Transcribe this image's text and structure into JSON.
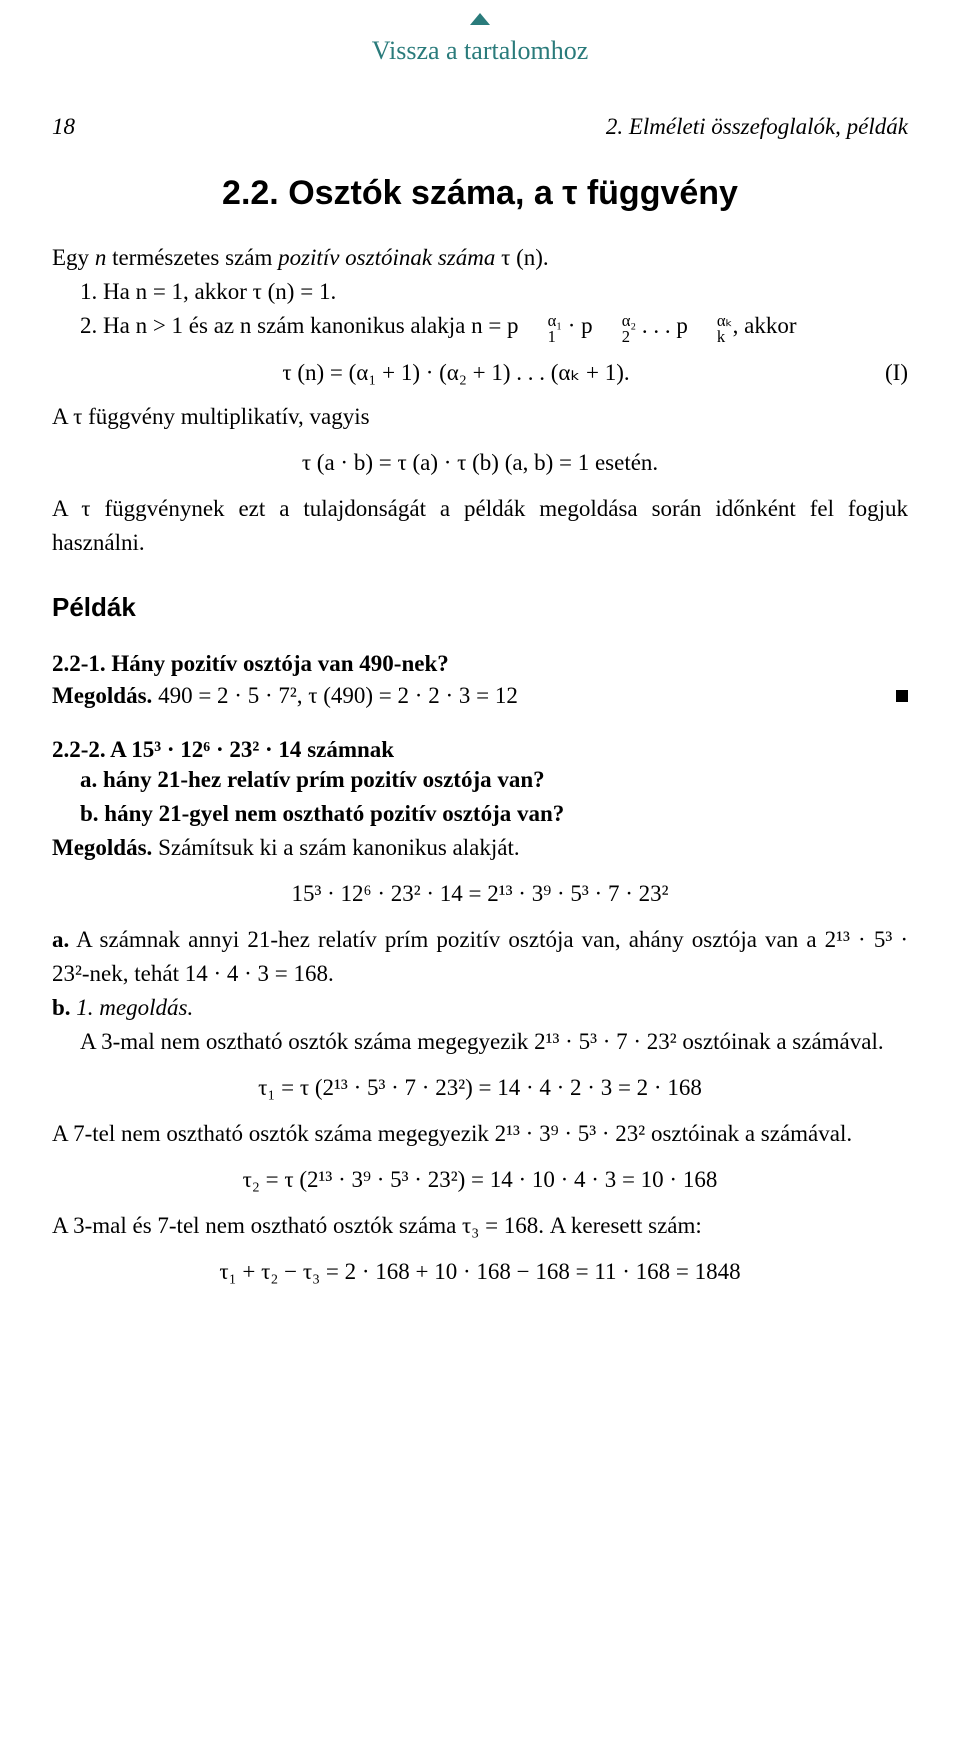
{
  "nav": {
    "back_label": "Vissza a tartalomhoz"
  },
  "header": {
    "page_number": "18",
    "running_title": "2. Elméleti összefoglalók, példák"
  },
  "section": {
    "number": "2.2.",
    "title": "Osztók száma, a τ függvény"
  },
  "intro": {
    "line1_pre": "Egy ",
    "line1_n": "n",
    "line1_mid": " természetes szám ",
    "line1_ital": "pozitív osztóinak száma",
    "line1_post": " τ (n).",
    "item1": "1. Ha n = 1, akkor τ (n) = 1.",
    "item2_pre": "2. Ha n > 1 és az n szám kanonikus alakja n = p",
    "item2_post": ", akkor",
    "canon_p1_sup": "α₁",
    "canon_p1_sub": "1",
    "canon_p2_sup": "α₂",
    "canon_p2_sub": "2",
    "canon_pk_sup": "αₖ",
    "canon_pk_sub": "k",
    "dots": " . . . "
  },
  "eqI": {
    "formula": "τ (n) = (α₁ + 1) · (α₂ + 1) . . . (αₖ + 1).",
    "label": "(I)"
  },
  "mult": {
    "text": "A τ függvény multiplikatív, vagyis",
    "formula": "τ (a · b) = τ (a) · τ (b)    (a, b) = 1 esetén."
  },
  "note": "A τ függvénynek ezt a tulajdonságát a példák megoldása során időnként fel fogjuk használni.",
  "examples_heading": "Példák",
  "p221": {
    "title": "2.2-1. Hány pozitív osztója van 490-nek?",
    "sol_label": "Megoldás.",
    "sol_body": " 490 = 2 · 5 · 7²,    τ (490) = 2 · 2 · 3 = 12"
  },
  "p222": {
    "title_pre": "2.2-2. A ",
    "title_expr": "15³ · 12⁶ · 23² · 14",
    "title_post": " számnak",
    "a": "a. hány 21-hez relatív prím pozitív osztója van?",
    "b": "b. hány 21-gyel nem osztható pozitív osztója van?",
    "sol_label": "Megoldás.",
    "sol_intro": " Számítsuk ki a szám kanonikus alakját.",
    "canon_eq": "15³ · 12⁶ · 23² · 14 = 2¹³ · 3⁹ · 5³ · 7 · 23²",
    "ans_a_pre": "a.",
    "ans_a_body": " A számnak annyi 21-hez relatív prím pozitív osztója van, ahány osztója van a 2¹³ · 5³ · 23²-nek, tehát 14 · 4 · 3 = 168.",
    "ans_b_label": "b.",
    "ans_b_ital": " 1. megoldás.",
    "ans_b_p1": "A 3-mal nem osztható osztók száma megegyezik 2¹³ · 5³ · 7 · 23² osztóinak a számával.",
    "tau1_eq": "τ₁ = τ (2¹³ · 5³ · 7 · 23²) = 14 · 4 · 2 · 3 = 2 · 168",
    "ans_b_p2": "A 7-tel nem osztható osztók száma megegyezik 2¹³ · 3⁹ · 5³ · 23² osztóinak a számával.",
    "tau2_eq": "τ₂ = τ (2¹³ · 3⁹ · 5³ · 23²) = 14 · 10 · 4 · 3 = 10 · 168",
    "ans_b_p3": "A 3-mal és 7-tel nem osztható osztók száma τ₃ = 168. A keresett szám:",
    "final_eq": "τ₁ + τ₂ − τ₃ = 2 · 168 + 10 · 168 − 168 = 11 · 168 = 1848"
  }
}
